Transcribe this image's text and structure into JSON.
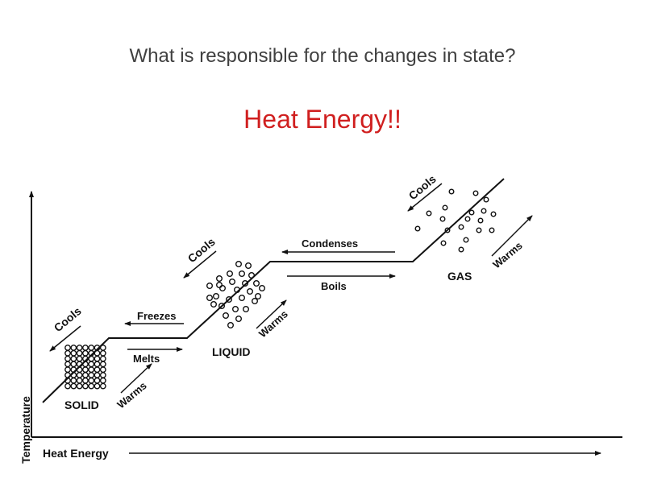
{
  "slide": {
    "question": "What is responsible for the changes in state?",
    "answer": "Heat Energy!!",
    "answer_color": "#d01f1f"
  },
  "diagram": {
    "y_axis_label": "Temperature",
    "x_axis_label": "Heat Energy",
    "states": {
      "solid": "SOLID",
      "liquid": "LIQUID",
      "gas": "GAS"
    },
    "transitions": {
      "melts": "Melts",
      "freezes": "Freezes",
      "boils": "Boils",
      "condenses": "Condenses"
    },
    "curve_labels": {
      "warms": "Warms",
      "cools": "Cools"
    },
    "line_color": "#111111"
  }
}
